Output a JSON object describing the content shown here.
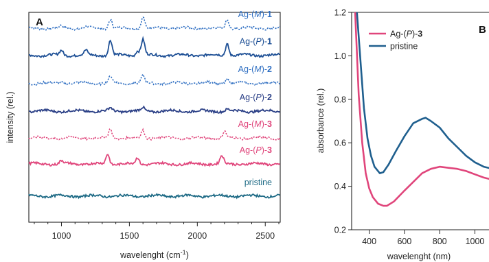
{
  "colors": {
    "blue": "#2f6fc2",
    "darkblue": "#1d4f95",
    "navy": "#2a3f86",
    "pink": "#e0457b",
    "teal": "#1f6b86",
    "steelblue": "#1f5f8e",
    "axis": "#222222"
  },
  "chart_data": [
    {
      "type": "line",
      "panel": "A",
      "xlabel_main": "wavelenght (cm",
      "xlabel_sup": "-1",
      "xlabel_end": ")",
      "ylabel": "intensity (rel.)",
      "xlim": [
        760,
        2610
      ],
      "xticks": [
        1000,
        1500,
        2000,
        2500
      ],
      "xtick_labels": [
        "1000",
        "1500",
        "2000",
        "2500"
      ],
      "y_ticks": false,
      "series": [
        {
          "label_pre": "Ag-(",
          "label_mid": "M",
          "label_post": ")-",
          "label_num": "1",
          "color": "blue",
          "dashed": true,
          "baseline": 0.93,
          "peaks": [
            [
              1000,
              0.12
            ],
            [
              1180,
              0.08
            ],
            [
              1360,
              0.6
            ],
            [
              1600,
              0.75
            ],
            [
              2220,
              0.55
            ]
          ]
        },
        {
          "label_pre": "Ag-(",
          "label_mid": "P",
          "label_post": ")-",
          "label_num": "1",
          "color": "darkblue",
          "dashed": false,
          "baseline": 0.8,
          "peaks": [
            [
              1000,
              0.3
            ],
            [
              1180,
              0.28
            ],
            [
              1360,
              0.95
            ],
            [
              1560,
              0.3
            ],
            [
              1600,
              1.0
            ],
            [
              2220,
              0.75
            ]
          ]
        },
        {
          "label_pre": "Ag-(",
          "label_mid": "M",
          "label_post": ")-",
          "label_num": "2",
          "color": "blue",
          "dashed": true,
          "baseline": 0.665,
          "peaks": [
            [
              1000,
              0.08
            ],
            [
              1360,
              0.4
            ],
            [
              1600,
              0.45
            ],
            [
              2220,
              0.3
            ]
          ]
        },
        {
          "label_pre": "Ag-(",
          "label_mid": "P",
          "label_post": ")-",
          "label_num": "2",
          "color": "navy",
          "dashed": false,
          "baseline": 0.53,
          "peaks": [
            [
              1360,
              0.18
            ],
            [
              1600,
              0.2
            ],
            [
              2220,
              0.12
            ]
          ]
        },
        {
          "label_pre": "Ag-(",
          "label_mid": "M",
          "label_post": ")-",
          "label_num": "3",
          "color": "pink",
          "dashed": true,
          "baseline": 0.4,
          "peaks": [
            [
              1360,
              0.55
            ],
            [
              1600,
              0.5
            ],
            [
              2200,
              0.4
            ]
          ]
        },
        {
          "label_pre": "Ag-(",
          "label_mid": "P",
          "label_post": ")-",
          "label_num": "3",
          "color": "pink",
          "dashed": false,
          "baseline": 0.275,
          "peaks": [
            [
              1000,
              0.2
            ],
            [
              1340,
              0.65
            ],
            [
              1560,
              0.4
            ],
            [
              2180,
              0.5
            ]
          ]
        },
        {
          "label_pre": "",
          "label_mid": "",
          "label_post": "pristine",
          "label_num": "",
          "color": "teal",
          "dashed": false,
          "baseline": 0.12,
          "peaks": []
        }
      ]
    },
    {
      "type": "line",
      "panel": "B",
      "xlabel": "wavelenght (nm)",
      "ylabel": "absorbance (rel.)",
      "xlim": [
        300,
        1100
      ],
      "ylim": [
        0.2,
        1.2
      ],
      "xticks": [
        400,
        600,
        800,
        1000
      ],
      "xtick_labels": [
        "400",
        "600",
        "800",
        "1000"
      ],
      "yticks": [
        0.2,
        0.4,
        0.6,
        0.8,
        1.0,
        1.2
      ],
      "ytick_labels": [
        "0.2",
        "0.4",
        "0.6",
        "0.8",
        "1.0",
        "1.2"
      ],
      "legend_position": "top-left",
      "series": [
        {
          "name_pre": "Ag-(",
          "name_mid": "P",
          "name_post": ")-",
          "name_num": "3",
          "color": "pink",
          "x": [
            320,
            340,
            360,
            380,
            400,
            420,
            450,
            480,
            500,
            540,
            600,
            650,
            700,
            750,
            800,
            850,
            900,
            950,
            1000,
            1050,
            1100
          ],
          "y": [
            1.2,
            0.82,
            0.6,
            0.46,
            0.39,
            0.35,
            0.32,
            0.31,
            0.31,
            0.33,
            0.38,
            0.42,
            0.46,
            0.48,
            0.49,
            0.485,
            0.48,
            0.47,
            0.455,
            0.44,
            0.43
          ]
        },
        {
          "name_pre": "",
          "name_mid": "",
          "name_post": "pristine",
          "name_num": "",
          "color": "steelblue",
          "x": [
            330,
            350,
            370,
            390,
            410,
            430,
            460,
            480,
            510,
            550,
            600,
            650,
            700,
            720,
            750,
            800,
            850,
            900,
            950,
            1000,
            1050,
            1100
          ],
          "y": [
            1.2,
            0.98,
            0.76,
            0.62,
            0.54,
            0.49,
            0.46,
            0.465,
            0.5,
            0.56,
            0.63,
            0.69,
            0.71,
            0.715,
            0.7,
            0.67,
            0.62,
            0.58,
            0.54,
            0.51,
            0.49,
            0.48
          ]
        }
      ]
    }
  ]
}
